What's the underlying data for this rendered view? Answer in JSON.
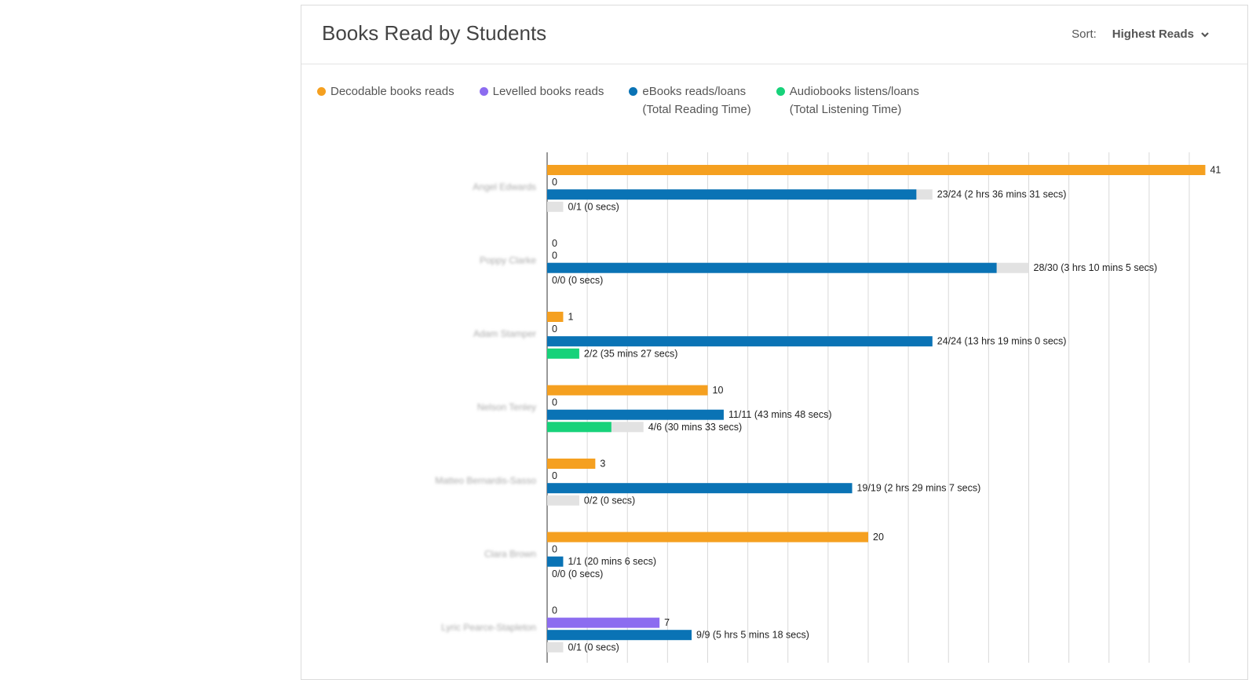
{
  "card": {
    "title": "Books Read by Students",
    "sort_label": "Sort:",
    "sort_value": "Highest Reads"
  },
  "legend": [
    {
      "label": "Decodable books reads",
      "sub": "",
      "color": "#f5a020"
    },
    {
      "label": "Levelled books reads",
      "sub": "",
      "color": "#8c6cf0"
    },
    {
      "label": "eBooks reads/loans",
      "sub": "(Total Reading Time)",
      "color": "#0a73b5"
    },
    {
      "label": "Audiobooks listens/loans",
      "sub": "(Total Listening Time)",
      "color": "#17d27a"
    }
  ],
  "chart_data": {
    "type": "bar",
    "orientation": "horizontal",
    "grid": true,
    "xlim": [
      0,
      42
    ],
    "colors": {
      "decodable": "#f5a020",
      "levelled": "#8c6cf0",
      "ebooks": "#0a73b5",
      "audio": "#17d27a",
      "remaining": "#e2e2e2"
    },
    "students": [
      {
        "name": "Angel Edwards",
        "decodable": 41,
        "decodable_label": "41",
        "levelled": 0,
        "levelled_label": "0",
        "ebooks": 23,
        "ebooks_total": 24,
        "ebooks_label": "23/24 (2 hrs 36 mins 31 secs)",
        "audio": 0,
        "audio_total": 1,
        "audio_label": "0/1 (0 secs)"
      },
      {
        "name": "Poppy Clarke",
        "decodable": 0,
        "decodable_label": "0",
        "levelled": 0,
        "levelled_label": "0",
        "ebooks": 28,
        "ebooks_total": 30,
        "ebooks_label": "28/30 (3 hrs 10 mins 5 secs)",
        "audio": 0,
        "audio_total": 0,
        "audio_label": "0/0 (0 secs)"
      },
      {
        "name": "Adam Stamper",
        "decodable": 1,
        "decodable_label": "1",
        "levelled": 0,
        "levelled_label": "0",
        "ebooks": 24,
        "ebooks_total": 24,
        "ebooks_label": "24/24 (13 hrs 19 mins 0 secs)",
        "audio": 2,
        "audio_total": 2,
        "audio_label": "2/2 (35 mins 27 secs)"
      },
      {
        "name": "Nelson Tenley",
        "decodable": 10,
        "decodable_label": "10",
        "levelled": 0,
        "levelled_label": "0",
        "ebooks": 11,
        "ebooks_total": 11,
        "ebooks_label": "11/11 (43 mins 48 secs)",
        "audio": 4,
        "audio_total": 6,
        "audio_label": "4/6 (30 mins 33 secs)"
      },
      {
        "name": "Matteo Bernardis-Sasso",
        "decodable": 3,
        "decodable_label": "3",
        "levelled": 0,
        "levelled_label": "0",
        "ebooks": 19,
        "ebooks_total": 19,
        "ebooks_label": "19/19 (2 hrs 29 mins 7 secs)",
        "audio": 0,
        "audio_total": 2,
        "audio_label": "0/2 (0 secs)"
      },
      {
        "name": "Clara Brown",
        "decodable": 20,
        "decodable_label": "20",
        "levelled": 0,
        "levelled_label": "0",
        "ebooks": 1,
        "ebooks_total": 1,
        "ebooks_label": "1/1 (20 mins 6 secs)",
        "audio": 0,
        "audio_total": 0,
        "audio_label": "0/0 (0 secs)"
      },
      {
        "name": "Lyric Pearce-Stapleton",
        "decodable": 0,
        "decodable_label": "0",
        "levelled": 7,
        "levelled_label": "7",
        "ebooks": 9,
        "ebooks_total": 9,
        "ebooks_label": "9/9 (5 hrs 5 mins 18 secs)",
        "audio": 0,
        "audio_total": 1,
        "audio_label": "0/1 (0 secs)"
      }
    ]
  }
}
